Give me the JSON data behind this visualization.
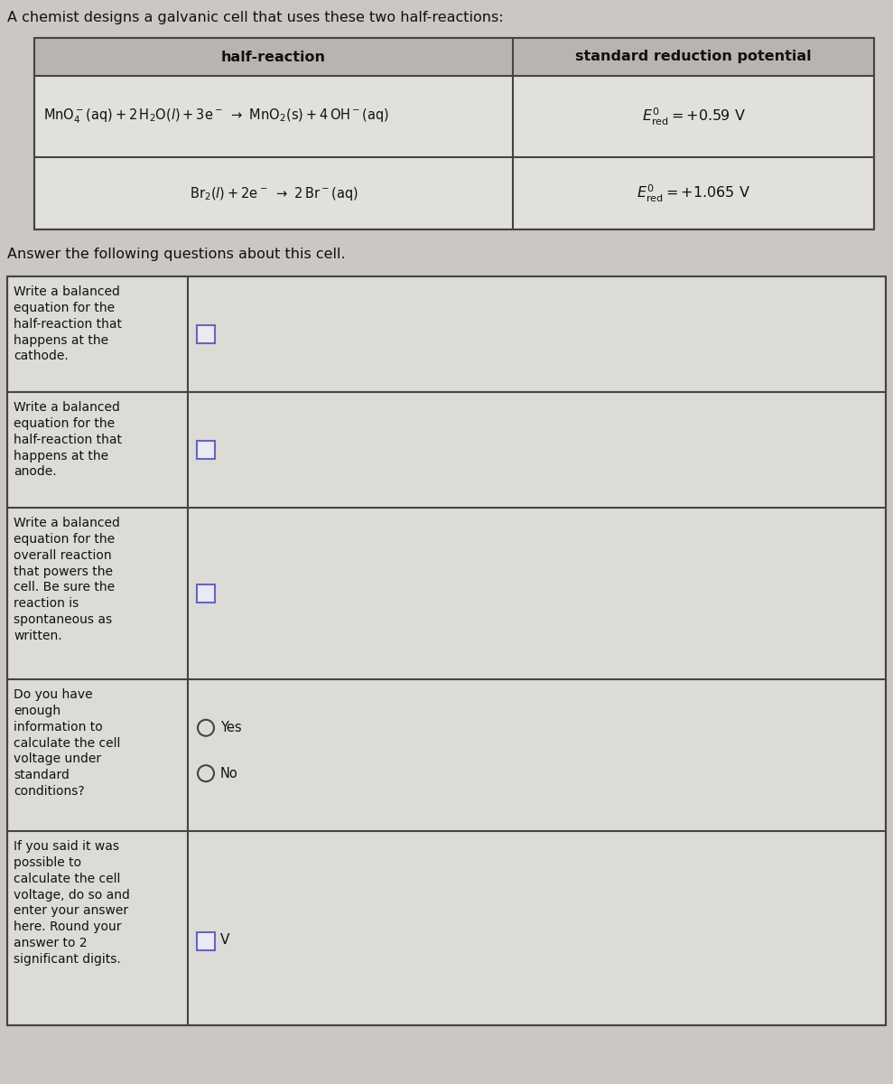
{
  "title": "A chemist designs a galvanic cell that uses these two half-reactions:",
  "table_header_col1": "half-reaction",
  "table_header_col2": "standard reduction potential",
  "subtitle": "Answer the following questions about this cell.",
  "q1_label": "Write a balanced\nequation for the\nhalf-reaction that\nhappens at the\ncathode.",
  "q2_label": "Write a balanced\nequation for the\nhalf-reaction that\nhappens at the\nanode.",
  "q3_label": "Write a balanced\nequation for the\noverall reaction\nthat powers the\ncell. Be sure the\nreaction is\nspontaneous as\nwritten.",
  "q4_label": "Do you have\nenough\ninformation to\ncalculate the cell\nvoltage under\nstandard\nconditions?",
  "q5_label": "If you said it was\npossible to\ncalculate the cell\nvoltage, do so and\nenter your answer\nhere. Round your\nanswer to 2\nsignificant digits.",
  "yes_label": "Yes",
  "no_label": "No",
  "v_label": "V",
  "bg_color": "#cbc8c4",
  "table_bg": "#e2e0dc",
  "cell_bg": "#dddbd6",
  "header_bg": "#b8b4b0",
  "border_color": "#444444",
  "text_color": "#111111",
  "input_border": "#6666bb",
  "input_fill": "#eaeaf5",
  "fig_w": 9.89,
  "fig_h": 12.0,
  "dpi": 100
}
